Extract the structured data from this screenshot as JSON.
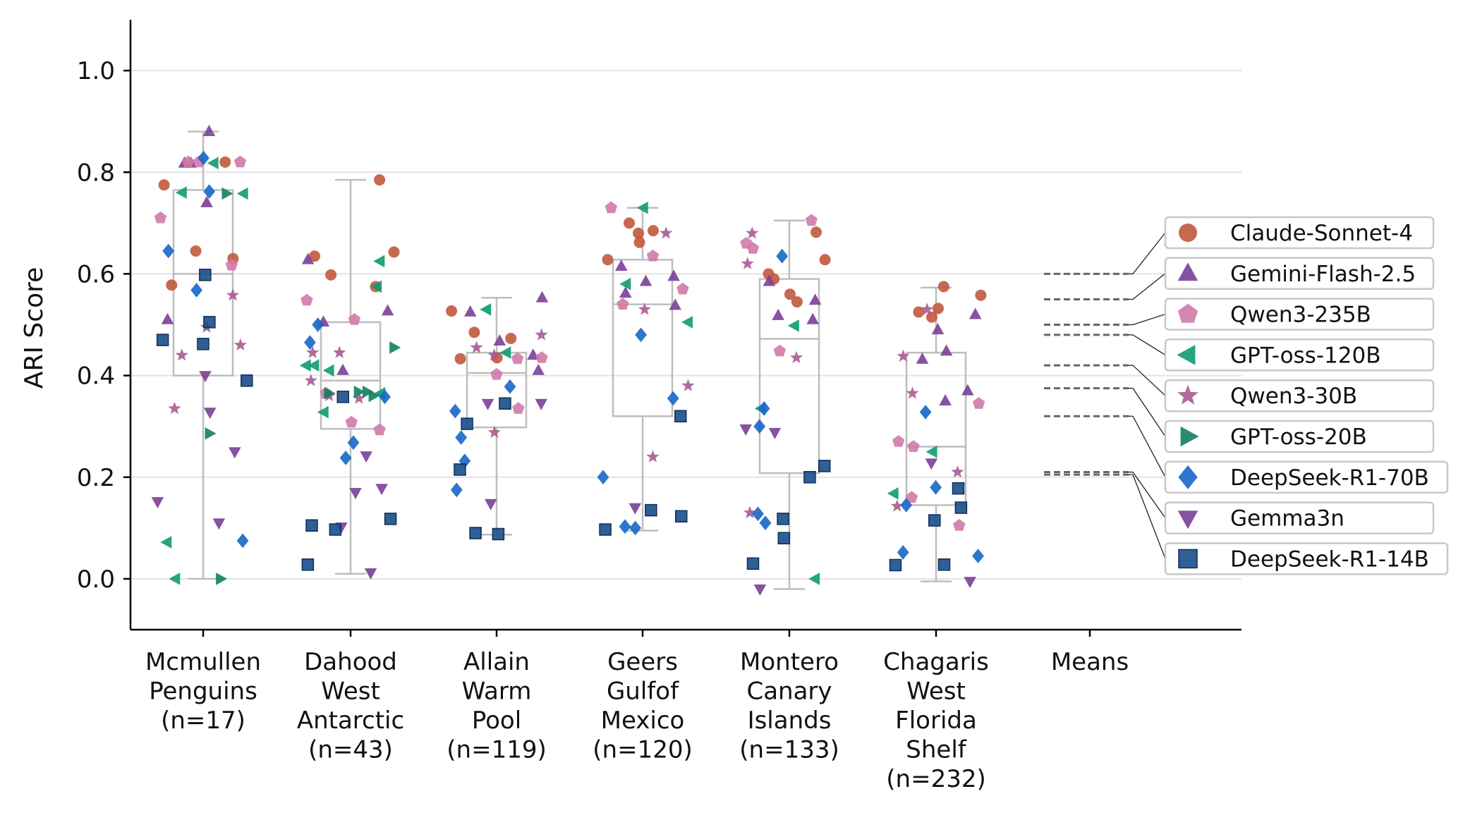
{
  "chart_data": {
    "type": "box-strip",
    "ylabel": "ARI Score",
    "ylim": [
      -0.1,
      1.1
    ],
    "yticks": [
      0.0,
      0.2,
      0.4,
      0.6,
      0.8,
      1.0
    ],
    "ytick_labels": [
      "0.0",
      "0.2",
      "0.4",
      "0.6",
      "0.8",
      "1.0"
    ],
    "grid": "y",
    "legend_placement": "right",
    "categories": [
      {
        "label": [
          "Mcmullen",
          "Penguins",
          "(n=17)"
        ],
        "box": {
          "whislo": 0.0,
          "q1": 0.4,
          "med": 0.6,
          "q3": 0.765,
          "whishi": 0.88
        }
      },
      {
        "label": [
          "Dahood",
          "West",
          "Antarctic",
          "(n=43)"
        ],
        "box": {
          "whislo": 0.01,
          "q1": 0.295,
          "med": 0.39,
          "q3": 0.505,
          "whishi": 0.785
        }
      },
      {
        "label": [
          "Allain",
          "Warm",
          "Pool",
          "(n=119)"
        ],
        "box": {
          "whislo": 0.087,
          "q1": 0.298,
          "med": 0.405,
          "q3": 0.445,
          "whishi": 0.553
        }
      },
      {
        "label": [
          "Geers",
          "Gulfof",
          "Mexico",
          "(n=120)"
        ],
        "box": {
          "whislo": 0.095,
          "q1": 0.32,
          "med": 0.54,
          "q3": 0.628,
          "whishi": 0.73
        }
      },
      {
        "label": [
          "Montero",
          "Canary",
          "Islands",
          "(n=133)"
        ],
        "box": {
          "whislo": -0.02,
          "q1": 0.208,
          "med": 0.472,
          "q3": 0.59,
          "whishi": 0.705
        }
      },
      {
        "label": [
          "Chagaris",
          "West",
          "Florida",
          "Shelf",
          "(n=232)"
        ],
        "box": {
          "whislo": -0.005,
          "q1": 0.145,
          "med": 0.26,
          "q3": 0.445,
          "whishi": 0.573
        }
      },
      {
        "label": [
          "Means"
        ]
      }
    ],
    "series": [
      {
        "name": "Claude-Sonnet-4",
        "color": "#c0593d",
        "marker": "circle",
        "mean": 0.6,
        "points": [
          [
            0,
            0.82
          ],
          [
            0,
            0.775
          ],
          [
            0,
            0.645
          ],
          [
            0,
            0.63
          ],
          [
            0,
            0.578
          ],
          [
            1,
            0.785
          ],
          [
            1,
            0.635
          ],
          [
            1,
            0.643
          ],
          [
            1,
            0.598
          ],
          [
            1,
            0.575
          ],
          [
            2,
            0.527
          ],
          [
            2,
            0.485
          ],
          [
            2,
            0.473
          ],
          [
            2,
            0.435
          ],
          [
            2,
            0.433
          ],
          [
            3,
            0.7
          ],
          [
            3,
            0.685
          ],
          [
            3,
            0.68
          ],
          [
            3,
            0.662
          ],
          [
            3,
            0.628
          ],
          [
            4,
            0.682
          ],
          [
            4,
            0.628
          ],
          [
            4,
            0.59
          ],
          [
            4,
            0.56
          ],
          [
            4,
            0.545
          ],
          [
            4,
            0.6
          ],
          [
            5,
            0.575
          ],
          [
            5,
            0.532
          ],
          [
            5,
            0.515
          ],
          [
            5,
            0.525
          ],
          [
            5,
            0.558
          ]
        ]
      },
      {
        "name": "Gemini-Flash-2.5",
        "color": "#7b3f98",
        "marker": "triangle-up",
        "mean": 0.55,
        "points": [
          [
            0,
            0.88
          ],
          [
            0,
            0.818
          ],
          [
            0,
            0.818
          ],
          [
            0,
            0.74
          ],
          [
            0,
            0.51
          ],
          [
            1,
            0.628
          ],
          [
            1,
            0.527
          ],
          [
            1,
            0.505
          ],
          [
            1,
            0.41
          ],
          [
            2,
            0.553
          ],
          [
            2,
            0.525
          ],
          [
            2,
            0.468
          ],
          [
            2,
            0.41
          ],
          [
            2,
            0.44
          ],
          [
            3,
            0.615
          ],
          [
            3,
            0.585
          ],
          [
            3,
            0.595
          ],
          [
            3,
            0.562
          ],
          [
            3,
            0.538
          ],
          [
            4,
            0.585
          ],
          [
            4,
            0.548
          ],
          [
            4,
            0.518
          ],
          [
            4,
            0.51
          ],
          [
            5,
            0.52
          ],
          [
            5,
            0.49
          ],
          [
            5,
            0.448
          ],
          [
            5,
            0.432
          ],
          [
            5,
            0.37
          ],
          [
            5,
            0.35
          ]
        ]
      },
      {
        "name": "Qwen3-235B",
        "color": "#d07aaa",
        "marker": "pentagon",
        "mean": 0.5,
        "points": [
          [
            0,
            0.82
          ],
          [
            0,
            0.82
          ],
          [
            0,
            0.82
          ],
          [
            0,
            0.71
          ],
          [
            0,
            0.617
          ],
          [
            1,
            0.548
          ],
          [
            1,
            0.51
          ],
          [
            1,
            0.365
          ],
          [
            1,
            0.308
          ],
          [
            1,
            0.293
          ],
          [
            2,
            0.433
          ],
          [
            2,
            0.435
          ],
          [
            2,
            0.402
          ],
          [
            2,
            0.335
          ],
          [
            3,
            0.73
          ],
          [
            3,
            0.635
          ],
          [
            3,
            0.57
          ],
          [
            3,
            0.54
          ],
          [
            4,
            0.705
          ],
          [
            4,
            0.66
          ],
          [
            4,
            0.65
          ],
          [
            4,
            0.448
          ],
          [
            5,
            0.345
          ],
          [
            5,
            0.27
          ],
          [
            5,
            0.26
          ],
          [
            5,
            0.16
          ],
          [
            5,
            0.105
          ]
        ]
      },
      {
        "name": "GPT-oss-120B",
        "color": "#0f9a72",
        "marker": "triangle-left",
        "mean": 0.48,
        "points": [
          [
            0,
            0.76
          ],
          [
            0,
            0.758
          ],
          [
            0,
            0.818
          ],
          [
            0,
            0.072
          ],
          [
            0,
            0.0
          ],
          [
            1,
            0.625
          ],
          [
            1,
            0.575
          ],
          [
            1,
            0.42
          ],
          [
            1,
            0.42
          ],
          [
            1,
            0.41
          ],
          [
            1,
            0.365
          ],
          [
            1,
            0.328
          ],
          [
            2,
            0.53
          ],
          [
            2,
            0.445
          ],
          [
            3,
            0.73
          ],
          [
            3,
            0.58
          ],
          [
            3,
            0.505
          ],
          [
            4,
            0.498
          ],
          [
            4,
            0.335
          ],
          [
            4,
            0.0
          ],
          [
            5,
            0.25
          ],
          [
            5,
            0.168
          ]
        ]
      },
      {
        "name": "Qwen3-30B",
        "color": "#a85a94",
        "marker": "star",
        "mean": 0.42,
        "points": [
          [
            0,
            0.558
          ],
          [
            0,
            0.495
          ],
          [
            0,
            0.46
          ],
          [
            0,
            0.44
          ],
          [
            0,
            0.335
          ],
          [
            1,
            0.445
          ],
          [
            1,
            0.445
          ],
          [
            1,
            0.39
          ],
          [
            1,
            0.355
          ],
          [
            1,
            0.36
          ],
          [
            2,
            0.48
          ],
          [
            2,
            0.455
          ],
          [
            2,
            0.44
          ],
          [
            2,
            0.288
          ],
          [
            3,
            0.68
          ],
          [
            3,
            0.53
          ],
          [
            3,
            0.38
          ],
          [
            3,
            0.24
          ],
          [
            4,
            0.68
          ],
          [
            4,
            0.62
          ],
          [
            4,
            0.435
          ],
          [
            4,
            0.13
          ],
          [
            5,
            0.53
          ],
          [
            5,
            0.438
          ],
          [
            5,
            0.365
          ],
          [
            5,
            0.143
          ],
          [
            5,
            0.21
          ]
        ]
      },
      {
        "name": "GPT-oss-20B",
        "color": "#118060",
        "marker": "triangle-right",
        "mean": 0.375,
        "points": [
          [
            0,
            0.758
          ],
          [
            0,
            0.286
          ],
          [
            0,
            0.0
          ],
          [
            1,
            0.455
          ],
          [
            1,
            0.368
          ],
          [
            1,
            0.365
          ],
          [
            1,
            0.36
          ],
          [
            1,
            0.368
          ]
        ]
      },
      {
        "name": "DeepSeek-R1-70B",
        "color": "#1667c7",
        "marker": "diamond",
        "mean": 0.32,
        "points": [
          [
            0,
            0.828
          ],
          [
            0,
            0.762
          ],
          [
            0,
            0.645
          ],
          [
            0,
            0.568
          ],
          [
            0,
            0.075
          ],
          [
            1,
            0.5
          ],
          [
            1,
            0.465
          ],
          [
            1,
            0.358
          ],
          [
            1,
            0.268
          ],
          [
            1,
            0.238
          ],
          [
            2,
            0.378
          ],
          [
            2,
            0.33
          ],
          [
            2,
            0.278
          ],
          [
            2,
            0.232
          ],
          [
            2,
            0.175
          ],
          [
            3,
            0.48
          ],
          [
            3,
            0.355
          ],
          [
            3,
            0.2
          ],
          [
            3,
            0.103
          ],
          [
            3,
            0.1
          ],
          [
            4,
            0.635
          ],
          [
            4,
            0.335
          ],
          [
            4,
            0.3
          ],
          [
            4,
            0.128
          ],
          [
            4,
            0.11
          ],
          [
            5,
            0.328
          ],
          [
            5,
            0.18
          ],
          [
            5,
            0.145
          ],
          [
            5,
            0.052
          ],
          [
            5,
            0.045
          ]
        ]
      },
      {
        "name": "Gemma3n",
        "color": "#7b3f98",
        "marker": "triangle-down",
        "mean": 0.21,
        "points": [
          [
            0,
            0.4
          ],
          [
            0,
            0.328
          ],
          [
            0,
            0.25
          ],
          [
            0,
            0.152
          ],
          [
            0,
            0.11
          ],
          [
            1,
            0.242
          ],
          [
            1,
            0.178
          ],
          [
            1,
            0.17
          ],
          [
            1,
            0.102
          ],
          [
            1,
            0.012
          ],
          [
            2,
            0.345
          ],
          [
            2,
            0.345
          ],
          [
            2,
            0.148
          ],
          [
            3,
            0.14
          ],
          [
            4,
            0.295
          ],
          [
            4,
            0.288
          ],
          [
            4,
            -0.02
          ],
          [
            5,
            0.228
          ],
          [
            5,
            -0.005
          ]
        ]
      },
      {
        "name": "DeepSeek-R1-14B",
        "color": "#1a4e8a",
        "marker": "square",
        "mean": 0.205,
        "points": [
          [
            0,
            0.598
          ],
          [
            0,
            0.505
          ],
          [
            0,
            0.47
          ],
          [
            0,
            0.462
          ],
          [
            0,
            0.39
          ],
          [
            1,
            0.358
          ],
          [
            1,
            0.118
          ],
          [
            1,
            0.105
          ],
          [
            1,
            0.097
          ],
          [
            1,
            0.028
          ],
          [
            2,
            0.345
          ],
          [
            2,
            0.305
          ],
          [
            2,
            0.215
          ],
          [
            2,
            0.09
          ],
          [
            2,
            0.088
          ],
          [
            3,
            0.32
          ],
          [
            3,
            0.135
          ],
          [
            3,
            0.123
          ],
          [
            3,
            0.097
          ],
          [
            4,
            0.222
          ],
          [
            4,
            0.2
          ],
          [
            4,
            0.118
          ],
          [
            4,
            0.08
          ],
          [
            4,
            0.03
          ],
          [
            5,
            0.178
          ],
          [
            5,
            0.14
          ],
          [
            5,
            0.115
          ],
          [
            5,
            0.028
          ],
          [
            5,
            0.027
          ]
        ]
      }
    ]
  }
}
